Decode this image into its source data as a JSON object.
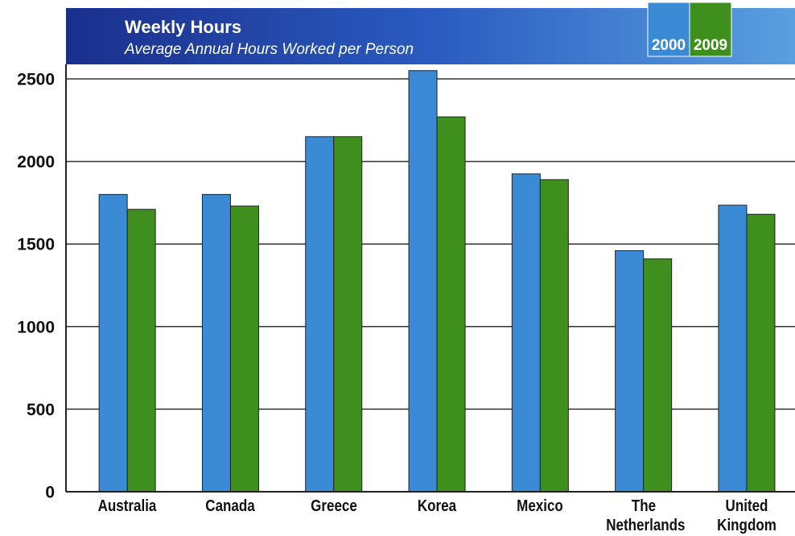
{
  "chart_data": {
    "type": "bar",
    "title": "Weekly Hours",
    "subtitle": "Average Annual Hours Worked per Person",
    "categories": [
      "Australia",
      "Canada",
      "Greece",
      "Korea",
      "Mexico",
      "The Netherlands",
      "United Kingdom"
    ],
    "series": [
      {
        "name": "2000",
        "color": "#3a8ad6",
        "values": [
          1800,
          1800,
          2150,
          2550,
          1925,
          1460,
          1735
        ]
      },
      {
        "name": "2009",
        "color": "#3f8f1f",
        "values": [
          1710,
          1730,
          2150,
          2270,
          1890,
          1410,
          1680
        ]
      }
    ],
    "ylim": [
      0,
      2500
    ],
    "yticks": [
      0,
      500,
      1000,
      1500,
      2000,
      2500
    ],
    "grid": true,
    "legend": "top-right"
  }
}
